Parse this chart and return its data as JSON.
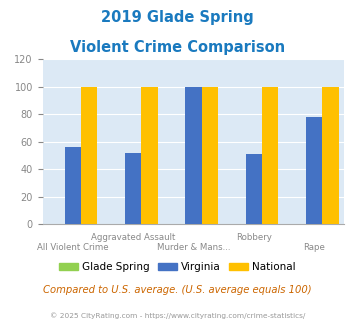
{
  "title_line1": "2019 Glade Spring",
  "title_line2": "Violent Crime Comparison",
  "title_color": "#1a7abf",
  "glade_spring": [
    0,
    0,
    0,
    0,
    0
  ],
  "virginia": [
    56,
    52,
    100,
    51,
    78
  ],
  "national": [
    100,
    100,
    100,
    100,
    100
  ],
  "glade_color": "#92d050",
  "virginia_color": "#4472c4",
  "national_color": "#ffc000",
  "ylim": [
    0,
    120
  ],
  "yticks": [
    0,
    20,
    40,
    60,
    80,
    100,
    120
  ],
  "bg_color": "#dce9f5",
  "legend_labels": [
    "Glade Spring",
    "Virginia",
    "National"
  ],
  "row1_labels": [
    "",
    "Aggravated Assault",
    "",
    "Robbery",
    ""
  ],
  "row2_labels": [
    "All Violent Crime",
    "",
    "Murder & Mans...",
    "",
    "Rape"
  ],
  "footer_text": "Compared to U.S. average. (U.S. average equals 100)",
  "copyright_text": "© 2025 CityRating.com - https://www.cityrating.com/crime-statistics/",
  "footer_color": "#cc6600",
  "copyright_color": "#999999"
}
